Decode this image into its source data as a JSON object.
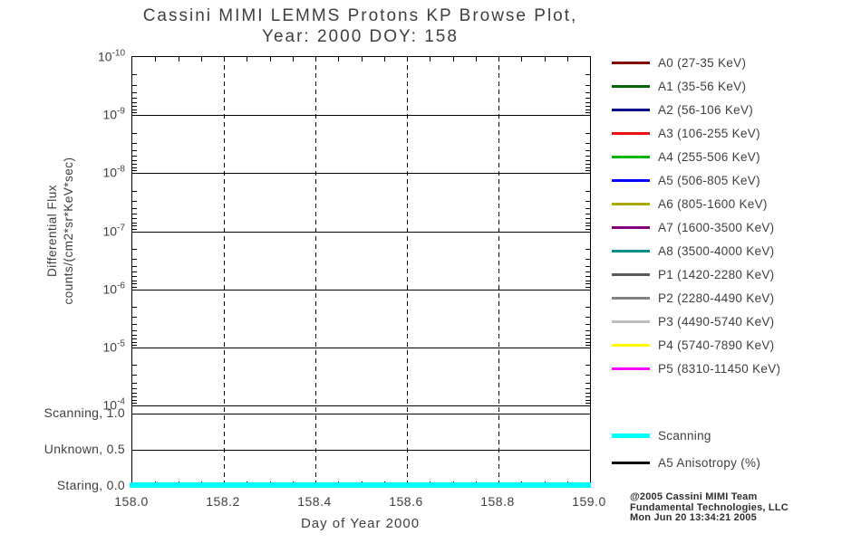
{
  "title": {
    "line1": "Cassini MIMI LEMMS Protons KP Browse Plot,",
    "line2": "Year: 2000 DOY: 158"
  },
  "y_axis": {
    "base": "10",
    "label_line1": "Differential Flux",
    "label_line2": "counts/(cm2*sr*KeV*sec)",
    "tick_exponents": [
      -10,
      -9,
      -8,
      -7,
      -6,
      -5,
      -4
    ]
  },
  "state_axis": {
    "labels": [
      "Scanning, 1.0",
      "Unknown, 0.5",
      "Staring, 0.0"
    ]
  },
  "x_axis": {
    "label": "Day of Year 2000",
    "ticks": [
      "158.0",
      "158.2",
      "158.4",
      "158.6",
      "158.8",
      "159.0"
    ]
  },
  "legend": {
    "channels": [
      {
        "label": "A0 (27-35 KeV)",
        "color": "#7d0000"
      },
      {
        "label": "A1 (35-56 KeV)",
        "color": "#006400"
      },
      {
        "label": "A2 (56-106 KeV)",
        "color": "#00008b"
      },
      {
        "label": "A3 (106-255 KeV)",
        "color": "#ee1111"
      },
      {
        "label": "A4 (255-506 KeV)",
        "color": "#00b400"
      },
      {
        "label": "A5 (506-805 KeV)",
        "color": "#0000ff"
      },
      {
        "label": "A6 (805-1600 KeV)",
        "color": "#a8a800"
      },
      {
        "label": "A7 (1600-3500 KeV)",
        "color": "#800080"
      },
      {
        "label": "A8 (3500-4000 KeV)",
        "color": "#008c8c"
      },
      {
        "label": "P1 (1420-2280 KeV)",
        "color": "#5a5a5a"
      },
      {
        "label": "P2 (2280-4490 KeV)",
        "color": "#828282"
      },
      {
        "label": "P3 (4490-5740 KeV)",
        "color": "#bebebe"
      },
      {
        "label": "P4 (5740-7890 KeV)",
        "color": "#ffff00"
      },
      {
        "label": "P5 (8310-11450 KeV)",
        "color": "#ff00ff"
      }
    ],
    "extra": [
      {
        "label": "Scanning",
        "color": "#00ffff",
        "thick": true
      },
      {
        "label": "A5 Anisotropy (%)",
        "color": "#000000",
        "thick": false
      }
    ]
  },
  "footer": {
    "line1": "@2005 Cassini MIMI Team",
    "line2": "Fundamental Technologies, LLC",
    "line3": "Mon Jun 20 13:34:21 2005"
  },
  "chart_data": {
    "type": "line",
    "title": "Cassini MIMI LEMMS Protons KP Browse Plot, Year: 2000 DOY: 158",
    "xlabel": "Day of Year 2000",
    "ylabel": "Differential Flux counts/(cm2*sr*KeV*sec)",
    "x_range": [
      158.0,
      159.0
    ],
    "x_ticks": [
      158.0,
      158.2,
      158.4,
      158.6,
      158.8,
      159.0
    ],
    "y_scale": "log",
    "y_tick_values": [
      1e-10,
      1e-09,
      1e-08,
      1e-07,
      1e-06,
      1e-05,
      0.0001
    ],
    "y_tick_labels": [
      "10^-10",
      "10^-9",
      "10^-8",
      "10^-7",
      "10^-6",
      "10^-5",
      "10^-4"
    ],
    "state_levels": [
      {
        "label": "Scanning",
        "value": 1.0
      },
      {
        "label": "Unknown",
        "value": 0.5
      },
      {
        "label": "Staring",
        "value": 0.0
      }
    ],
    "grid": true,
    "legend_position": "right",
    "series": [
      {
        "name": "Scanning",
        "color": "#00ffff",
        "axis": "state",
        "x": [
          158.0,
          159.0
        ],
        "y": [
          0.0,
          0.0
        ]
      }
    ],
    "notes": "No proton flux curves are visible; only the cyan scanning-state line drawn constant at 0.0 (Staring) across the full day."
  }
}
